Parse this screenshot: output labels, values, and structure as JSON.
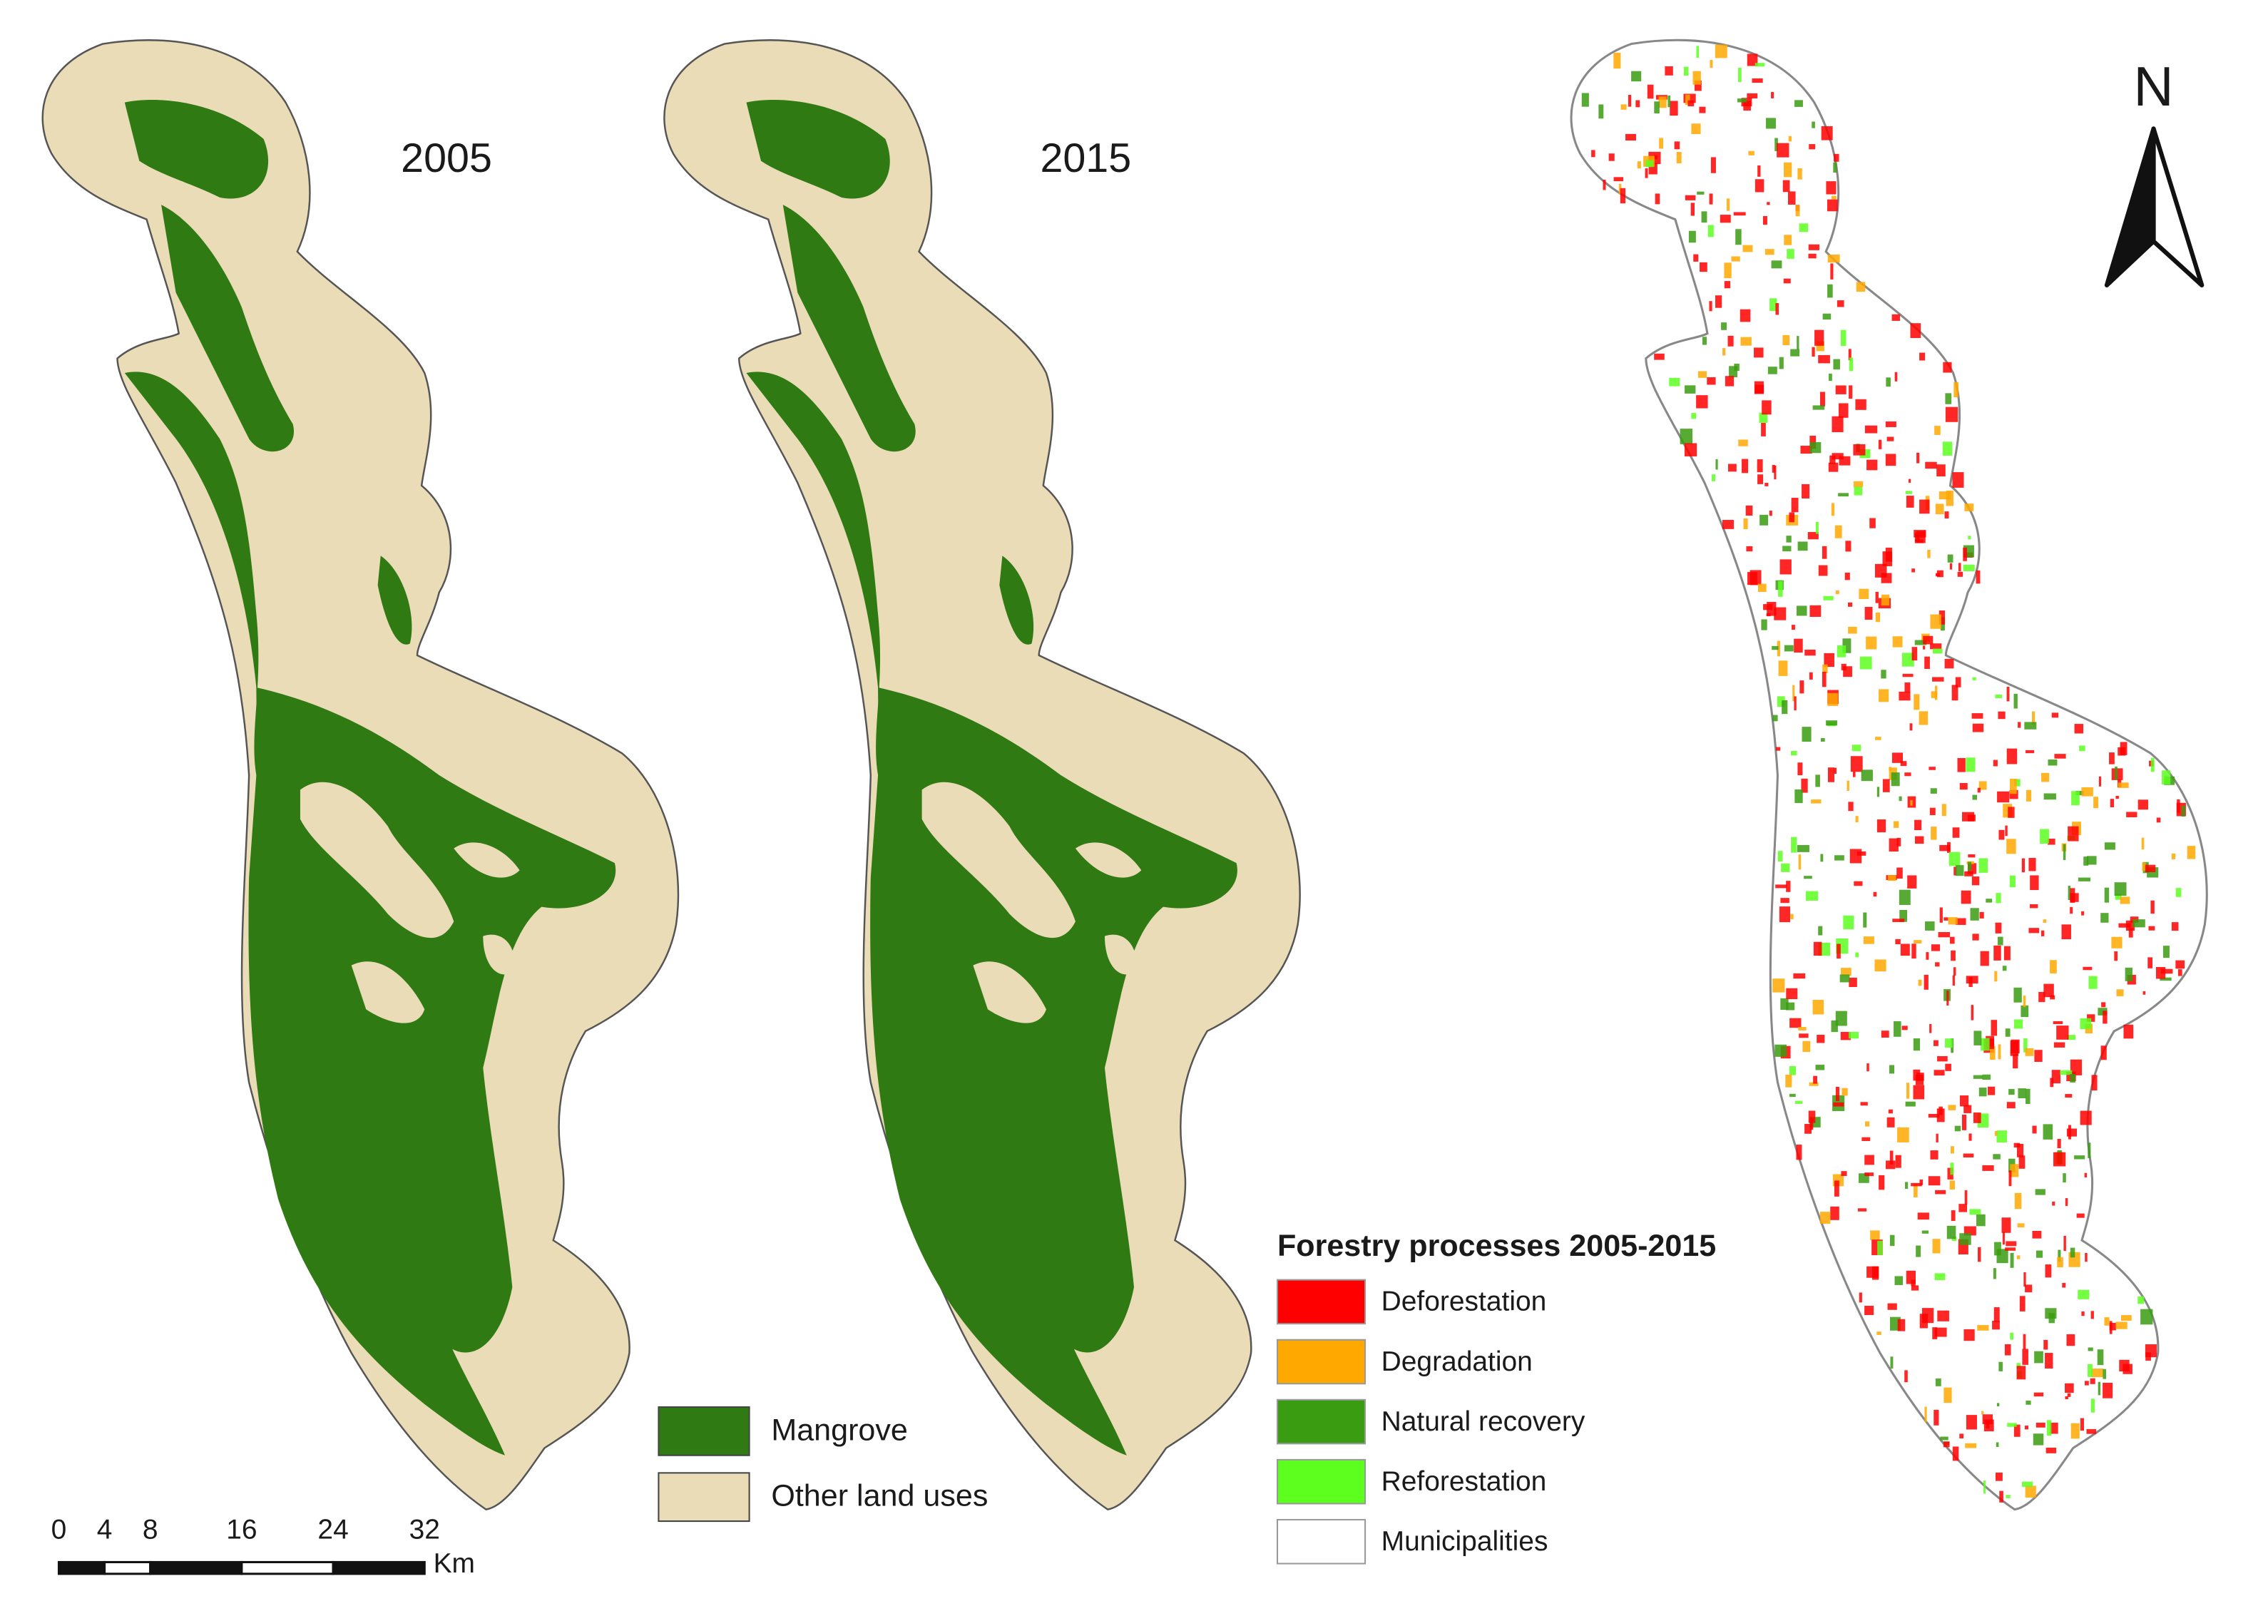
{
  "maps": [
    {
      "label": "2005"
    },
    {
      "label": "2015"
    }
  ],
  "legend_cover": {
    "items": [
      {
        "label": "Mangrove",
        "color": "#2f7a12"
      },
      {
        "label": "Other land uses",
        "color": "#ebdcb8"
      }
    ]
  },
  "legend_processes": {
    "title": "Forestry processes 2005-2015",
    "items": [
      {
        "label": "Deforestation",
        "color": "#ff0000"
      },
      {
        "label": "Degradation",
        "color": "#ffa800"
      },
      {
        "label": "Natural recovery",
        "color": "#3a9c10"
      },
      {
        "label": "Reforestation",
        "color": "#5cff1e"
      },
      {
        "label": "Municipalities",
        "color": "#ffffff"
      }
    ]
  },
  "scale_bar": {
    "ticks": [
      0,
      4,
      8,
      16,
      24,
      32
    ],
    "unit": "Km"
  },
  "north": "N"
}
